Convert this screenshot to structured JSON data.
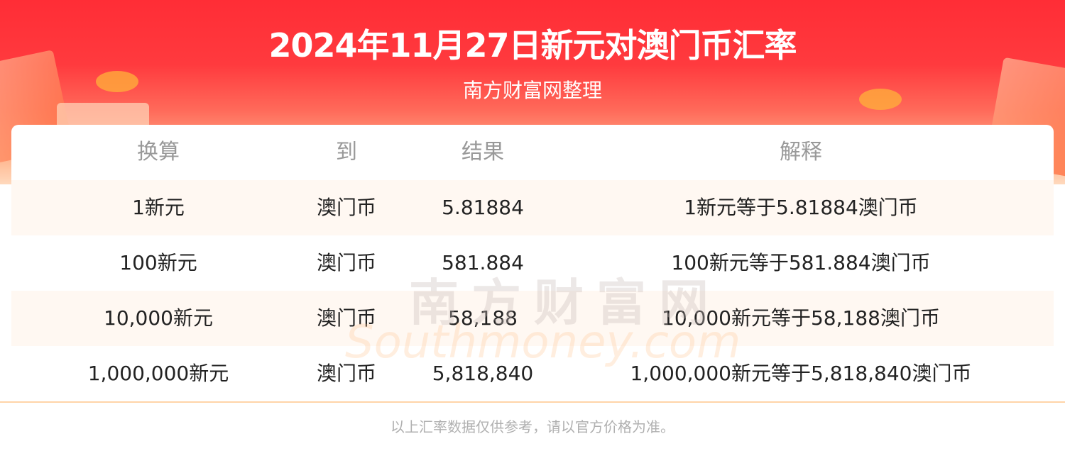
{
  "header": {
    "title": "2024年11月27日新元对澳门币汇率",
    "subtitle": "南方财富网整理"
  },
  "table": {
    "columns": [
      "换算",
      "到",
      "结果",
      "解释"
    ],
    "rows": [
      [
        "1新元",
        "澳门币",
        "5.81884",
        "1新元等于5.81884澳门币"
      ],
      [
        "100新元",
        "澳门币",
        "581.884",
        "100新元等于581.884澳门币"
      ],
      [
        "10,000新元",
        "澳门币",
        "58,188",
        "10,000新元等于58,188澳门币"
      ],
      [
        "1,000,000新元",
        "澳门币",
        "5,818,840",
        "1,000,000新元等于5,818,840澳门币"
      ]
    ]
  },
  "watermark": {
    "cn": "南方财富网",
    "en": "Southmoney.com"
  },
  "footer": {
    "note": "以上汇率数据仅供参考，请以官方价格为准。"
  },
  "colors": {
    "brand_red": "#ff2d36",
    "stripe": "#fff8f2",
    "divider": "#ffd4a8"
  }
}
